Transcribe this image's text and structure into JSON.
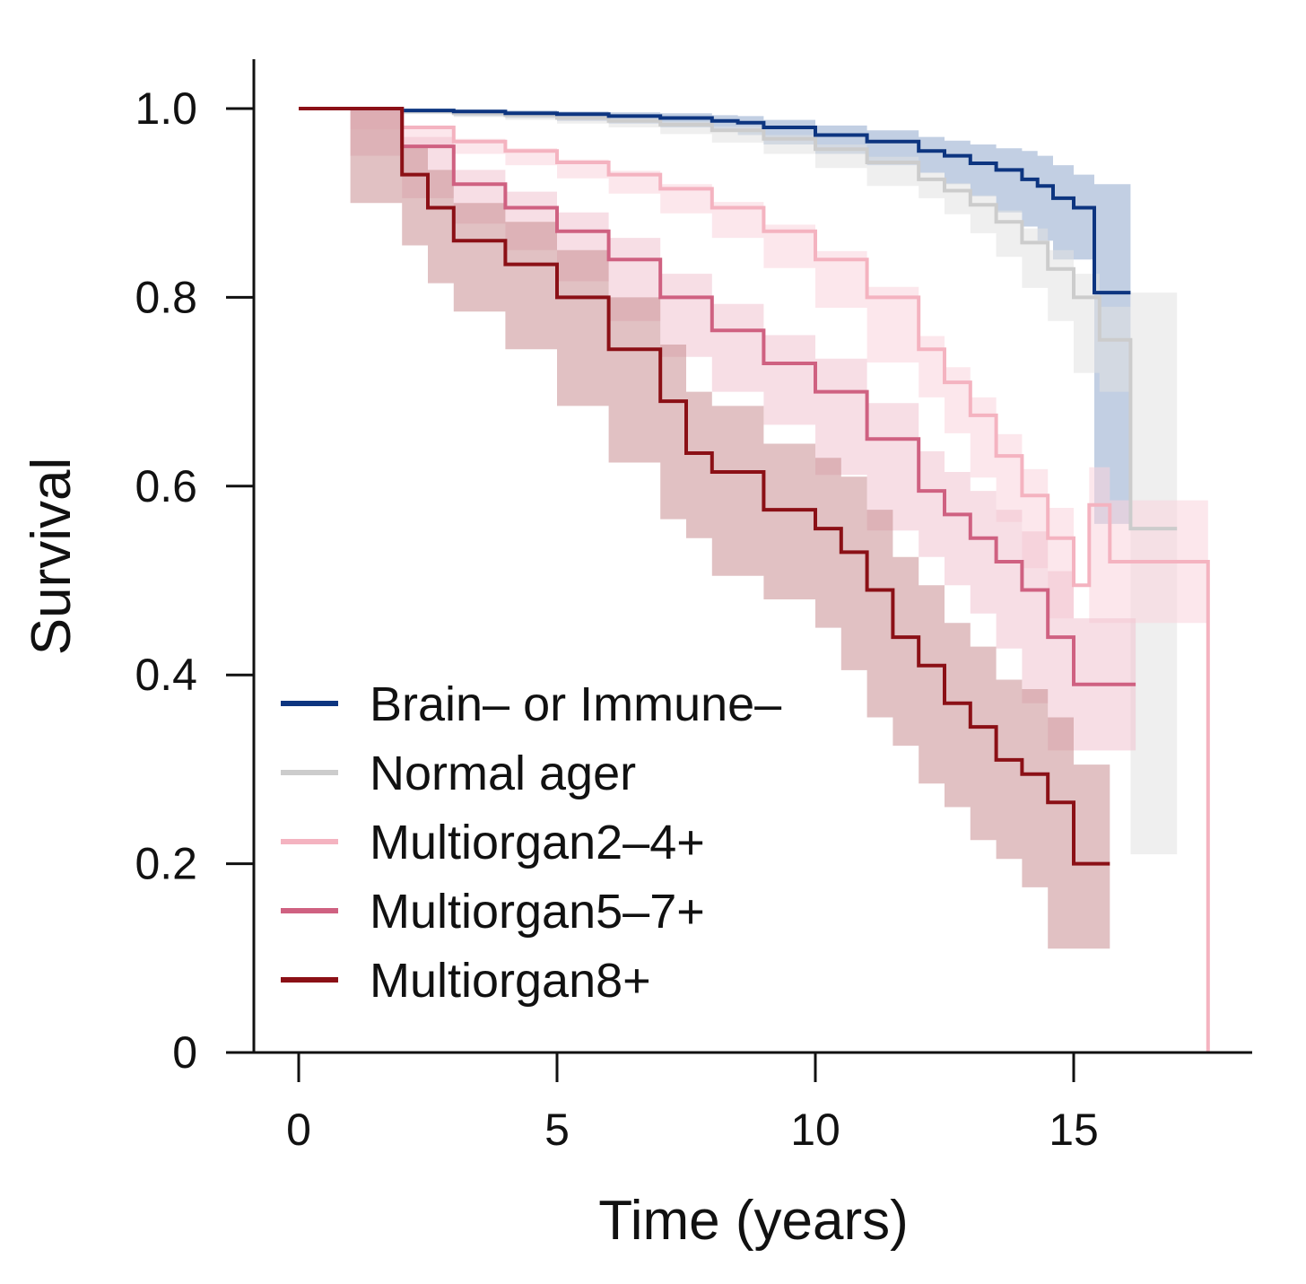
{
  "chart_data": {
    "type": "line",
    "subtype": "kaplan-meier survival curves with confidence bands",
    "title": "",
    "xlabel": "Time (years)",
    "ylabel": "Survival",
    "xlim": [
      -1.7,
      18.5
    ],
    "ylim": [
      0,
      1.05
    ],
    "xticks": [
      0,
      5,
      10,
      15
    ],
    "xtick_labels": [
      "0",
      "5",
      "10",
      "15"
    ],
    "yticks": [
      0,
      0.2,
      0.4,
      0.6,
      0.8,
      1.0
    ],
    "ytick_labels": [
      "0",
      "0.2",
      "0.4",
      "0.6",
      "0.8",
      "1.0"
    ],
    "grid": false,
    "legend_position": "bottom-left",
    "series": [
      {
        "name": "Brain– or Immune–",
        "color": "#0d3580",
        "band_color": "#8fa8cc",
        "x": [
          0,
          1,
          2,
          3,
          4,
          5,
          6,
          7,
          8,
          8.5,
          9,
          10,
          11,
          12,
          12.5,
          13,
          13.5,
          14,
          14.3,
          14.6,
          15,
          15.4,
          15.4,
          16.1
        ],
        "y": [
          1.0,
          1.0,
          0.998,
          0.997,
          0.995,
          0.994,
          0.992,
          0.99,
          0.987,
          0.985,
          0.98,
          0.972,
          0.965,
          0.955,
          0.95,
          0.942,
          0.935,
          0.925,
          0.918,
          0.905,
          0.895,
          0.895,
          0.805,
          0.805
        ],
        "lower": [
          1.0,
          1.0,
          0.997,
          0.995,
          0.992,
          0.99,
          0.987,
          0.984,
          0.98,
          0.977,
          0.972,
          0.962,
          0.952,
          0.94,
          0.932,
          0.92,
          0.907,
          0.89,
          0.875,
          0.86,
          0.84,
          0.84,
          0.56,
          0.56
        ],
        "upper": [
          1.0,
          1.0,
          0.999,
          0.999,
          0.998,
          0.997,
          0.996,
          0.995,
          0.993,
          0.992,
          0.988,
          0.982,
          0.977,
          0.97,
          0.966,
          0.962,
          0.958,
          0.955,
          0.95,
          0.94,
          0.93,
          0.93,
          0.92,
          0.92
        ]
      },
      {
        "name": "Normal ager",
        "color": "#cccccc",
        "band_color": "#e2e2e2",
        "x": [
          0,
          1,
          2,
          3,
          4,
          5,
          6,
          7,
          8,
          9,
          10,
          11,
          12,
          12.5,
          13,
          13.5,
          14,
          14.5,
          15,
          15.5,
          16.1,
          16.1,
          17
        ],
        "y": [
          1.0,
          1.0,
          0.997,
          0.995,
          0.993,
          0.99,
          0.987,
          0.983,
          0.977,
          0.968,
          0.957,
          0.943,
          0.925,
          0.913,
          0.898,
          0.88,
          0.858,
          0.83,
          0.8,
          0.755,
          0.74,
          0.555,
          0.555
        ],
        "lower": [
          1.0,
          1.0,
          0.996,
          0.994,
          0.991,
          0.988,
          0.984,
          0.98,
          0.973,
          0.964,
          0.952,
          0.937,
          0.918,
          0.905,
          0.888,
          0.868,
          0.843,
          0.81,
          0.775,
          0.72,
          0.7,
          0.21,
          0.21
        ],
        "upper": [
          1.0,
          1.0,
          0.998,
          0.996,
          0.995,
          0.992,
          0.99,
          0.986,
          0.981,
          0.972,
          0.962,
          0.949,
          0.932,
          0.921,
          0.908,
          0.892,
          0.873,
          0.85,
          0.825,
          0.79,
          0.775,
          0.805,
          0.805
        ]
      },
      {
        "name": "Multiorgan2–4+",
        "color": "#f4b3c0",
        "band_color": "#f9d4dc",
        "x": [
          0,
          1,
          2,
          3,
          4,
          5,
          6,
          7,
          8,
          9,
          10,
          11,
          12,
          12.5,
          13,
          13.5,
          14,
          14.5,
          15,
          15.3,
          15.7,
          17.6,
          17.6
        ],
        "y": [
          1.0,
          1.0,
          0.98,
          0.965,
          0.955,
          0.943,
          0.93,
          0.915,
          0.895,
          0.87,
          0.84,
          0.8,
          0.745,
          0.71,
          0.675,
          0.632,
          0.59,
          0.545,
          0.495,
          0.58,
          0.52,
          0.52,
          0.0
        ],
        "lower": [
          1.0,
          1.0,
          0.978,
          0.962,
          0.952,
          0.94,
          0.926,
          0.91,
          0.889,
          0.863,
          0.831,
          0.789,
          0.731,
          0.694,
          0.656,
          0.609,
          0.562,
          0.513,
          0.46,
          0.53,
          0.455,
          0.455,
          0.455
        ],
        "upper": [
          1.0,
          1.0,
          0.982,
          0.968,
          0.958,
          0.946,
          0.934,
          0.92,
          0.901,
          0.877,
          0.849,
          0.811,
          0.759,
          0.726,
          0.694,
          0.655,
          0.618,
          0.577,
          0.53,
          0.62,
          0.585,
          0.585,
          0.585
        ]
      },
      {
        "name": "Multiorgan5–7+",
        "color": "#cf6181",
        "band_color": "#f0c2cf",
        "x": [
          0,
          1,
          2,
          3,
          4,
          5,
          6,
          7,
          8,
          9,
          10,
          11,
          12,
          12.5,
          13,
          13.5,
          14,
          14.5,
          15,
          16.2
        ],
        "y": [
          1.0,
          1.0,
          0.96,
          0.92,
          0.895,
          0.87,
          0.84,
          0.8,
          0.765,
          0.73,
          0.7,
          0.65,
          0.595,
          0.57,
          0.545,
          0.52,
          0.49,
          0.44,
          0.39,
          0.39
        ],
        "lower": [
          1.0,
          1.0,
          0.95,
          0.905,
          0.878,
          0.85,
          0.817,
          0.775,
          0.737,
          0.7,
          0.665,
          0.612,
          0.553,
          0.525,
          0.495,
          0.465,
          0.428,
          0.37,
          0.32,
          0.32
        ],
        "upper": [
          1.0,
          1.0,
          0.97,
          0.935,
          0.912,
          0.89,
          0.863,
          0.825,
          0.793,
          0.76,
          0.735,
          0.688,
          0.637,
          0.615,
          0.595,
          0.575,
          0.552,
          0.51,
          0.46,
          0.46
        ]
      },
      {
        "name": "Multiorgan8+",
        "color": "#8b1016",
        "band_color": "#c98e91",
        "x": [
          0,
          1,
          2,
          2.5,
          3,
          4,
          5,
          6,
          7,
          7.5,
          8,
          9,
          10,
          10.5,
          11,
          11.5,
          12,
          12.5,
          13,
          13.5,
          14,
          14.5,
          15,
          15.7
        ],
        "y": [
          1.0,
          1.0,
          0.93,
          0.895,
          0.86,
          0.835,
          0.8,
          0.745,
          0.69,
          0.635,
          0.615,
          0.575,
          0.555,
          0.53,
          0.49,
          0.44,
          0.41,
          0.37,
          0.345,
          0.31,
          0.295,
          0.265,
          0.2,
          0.2
        ],
        "lower": [
          1.0,
          1.0,
          0.9,
          0.855,
          0.815,
          0.785,
          0.745,
          0.685,
          0.625,
          0.565,
          0.545,
          0.505,
          0.48,
          0.45,
          0.405,
          0.355,
          0.325,
          0.285,
          0.26,
          0.225,
          0.205,
          0.175,
          0.11,
          0.11
        ],
        "upper": [
          1.0,
          1.0,
          0.96,
          0.935,
          0.9,
          0.88,
          0.85,
          0.8,
          0.75,
          0.7,
          0.685,
          0.645,
          0.63,
          0.61,
          0.575,
          0.525,
          0.495,
          0.455,
          0.43,
          0.395,
          0.385,
          0.355,
          0.305,
          0.305
        ]
      }
    ]
  }
}
